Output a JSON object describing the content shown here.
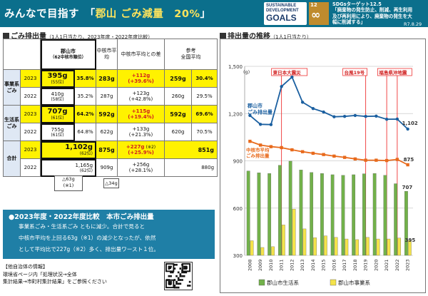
{
  "header": {
    "title_pre": "みんなで目指す　「",
    "title_accent": "郡山 ごみ減量　20%",
    "title_post": "」",
    "sdg_logo_lines": [
      "SUSTAINABLE",
      "DEVELOPMENT",
      "GOALS"
    ],
    "sdg12_num": "12",
    "sdg12_symbol": "∞",
    "sdg_target": [
      "SDGsターゲット12.5",
      "「廃棄物の発生防止、削減、再生利用",
      "及び再利用により、廃棄物の発生を大",
      "幅に削減する」"
    ],
    "date": "R7.8.29",
    "colors": {
      "bar": "#0b6f8c",
      "accent": "#ffe45c"
    }
  },
  "table_section": {
    "title": "ごみ排出量",
    "sub": "（1人1日当たり、2023年度・2022年度比較）"
  },
  "table": {
    "headers": {
      "koriyama": "郡山市",
      "koriyama_rank": "（62中核市順位）",
      "core_avg": "中核市平均",
      "diff": "中核市平均との差",
      "ref": "参考",
      "ref2": "全国平均"
    },
    "rows": [
      {
        "cat": "事業系ごみ",
        "year": "2023",
        "k_val": "395g",
        "k_rank": "(55位)",
        "k_pct": "35.8%",
        "avg": "283g",
        "diff1": "+112g",
        "diff2": "(+39.6%)",
        "ref": "259g",
        "ref_pct": "30.4%"
      },
      {
        "cat": "",
        "year": "2022",
        "k_val": "410g",
        "k_rank": "(58位)",
        "k_pct": "35.2%",
        "avg": "287g",
        "diff1": "+123g",
        "diff2": "(+42.8%)",
        "ref": "260g",
        "ref_pct": "29.5%"
      },
      {
        "cat": "生活系ごみ",
        "year": "2023",
        "k_val": "707g",
        "k_rank": "(61位)",
        "k_pct": "64.2%",
        "avg": "592g",
        "diff1": "+115g",
        "diff2": "(+19.4%)",
        "ref": "592g",
        "ref_pct": "69.6%"
      },
      {
        "cat": "",
        "year": "2022",
        "k_val": "755g",
        "k_rank": "(61位)",
        "k_pct": "64.8%",
        "avg": "622g",
        "diff1": "+133g",
        "diff2": "(+21.3%)",
        "ref": "620g",
        "ref_pct": "70.5%"
      },
      {
        "cat": "合計",
        "year": "2023",
        "k_val": "1,102g",
        "k_rank": "(62位)",
        "k_pct": "",
        "avg": "875g",
        "diff1": "+227g",
        "diff2": "(+25.9%)",
        "diff_note": "(※2)",
        "ref": "851g",
        "ref_pct": ""
      },
      {
        "cat": "",
        "year": "2022",
        "k_val": "1,165g",
        "k_rank": "(62位)",
        "k_pct": "",
        "avg": "909g",
        "diff1": "+256g",
        "diff2": "(+28.1%)",
        "ref": "880g",
        "ref_pct": ""
      }
    ],
    "note1": "△63g",
    "note1b": "(※1)",
    "note2": "△34g"
  },
  "summary": {
    "title": "●2023年度・2022年度比較　本市ごみ排出量",
    "lines": [
      "事業系ごみ・生活系ごみ ともに減少。合計で見ると",
      "中核市平均を上回る63g（※1）の減少となったが、依然",
      "として平均比で227g（※2）多く、排出量ワースト１位。"
    ]
  },
  "info": {
    "lines": [
      "【他自治体の情報】",
      "環境省ページ内「処理状況→全体",
      "集計結果→市町村集計結果」をご参照ください"
    ]
  },
  "chart_section": {
    "title": "排出量の推移",
    "sub": "（1人1日当たり）"
  },
  "chart_data": {
    "type": "line+bar",
    "x": [
      "2008",
      "2009",
      "2010",
      "2011",
      "2012",
      "2013",
      "2014",
      "2015",
      "2016",
      "2017",
      "2018",
      "2019",
      "2020",
      "2021",
      "2022",
      "2023"
    ],
    "ylim": [
      300,
      1500
    ],
    "yticks": [
      300,
      600,
      900,
      1200,
      1500
    ],
    "yunit": "g",
    "line_series": [
      {
        "name": "郡山市 ごみ排出量",
        "values": [
          1188,
          1132,
          1130,
          1372,
          1432,
          1272,
          1232,
          1210,
          1180,
          1182,
          1188,
          1182,
          1184,
          1164,
          1165,
          1102
        ],
        "end_label": "1,102",
        "color": "#1a5fa0"
      },
      {
        "name": "中核市平均 ごみ排出量",
        "values": [
          1024,
          1000,
          990,
          984,
          970,
          958,
          948,
          940,
          930,
          922,
          912,
          904,
          904,
          902,
          909,
          875
        ],
        "end_label": "875",
        "color": "#e86a1c"
      }
    ],
    "bar_series": [
      {
        "name": "郡山市生活系",
        "values": [
          836,
          824,
          820,
          872,
          898,
          842,
          826,
          820,
          812,
          808,
          812,
          818,
          820,
          808,
          755,
          707
        ],
        "end_label": "707",
        "color": "#72b14a"
      },
      {
        "name": "郡山市事業系",
        "values": [
          393,
          350,
          355,
          493,
          594,
          468,
          412,
          424,
          414,
          404,
          400,
          414,
          404,
          404,
          410,
          395
        ],
        "end_label": "395",
        "color": "#f4e34a"
      }
    ],
    "events": [
      {
        "label": "東日本大震災",
        "x": "2011"
      },
      {
        "label": "台風19号",
        "x": "2019"
      },
      {
        "label": "福島県沖地震",
        "x": "2021"
      },
      {
        "label": "",
        "x": "2022"
      }
    ],
    "legend": [
      "郡山市生活系",
      "郡山市事業系"
    ]
  }
}
